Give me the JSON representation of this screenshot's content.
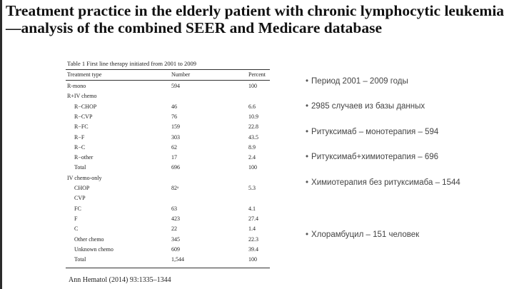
{
  "title": "Treatment practice in the elderly patient with chronic lymphocytic leukemia—analysis of the combined SEER and Medicare database",
  "table": {
    "caption": "Table 1  First line therapy initiated from 2001 to 2009",
    "headers": [
      "Treatment type",
      "Number",
      "Percent"
    ],
    "rows": [
      {
        "type": "R-mono",
        "number": "594",
        "percent": "100",
        "indent": false
      },
      {
        "type": "R+IV chemo",
        "number": "",
        "percent": "",
        "indent": false
      },
      {
        "type": "R−CHOP",
        "number": "46",
        "percent": "6.6",
        "indent": true
      },
      {
        "type": "R−CVP",
        "number": "76",
        "percent": "10.9",
        "indent": true
      },
      {
        "type": "R−FC",
        "number": "159",
        "percent": "22.8",
        "indent": true
      },
      {
        "type": "R−F",
        "number": "303",
        "percent": "43.5",
        "indent": true
      },
      {
        "type": "R−C",
        "number": "62",
        "percent": "8.9",
        "indent": true
      },
      {
        "type": "R−other",
        "number": "17",
        "percent": "2.4",
        "indent": true
      },
      {
        "type": "Total",
        "number": "696",
        "percent": "100",
        "indent": true
      },
      {
        "type": "IV chemo-only",
        "number": "",
        "percent": "",
        "indent": false
      },
      {
        "type": "CHOP",
        "number": "82ᵃ",
        "percent": "5.3",
        "indent": true
      },
      {
        "type": "CVP",
        "number": "",
        "percent": "",
        "indent": true
      },
      {
        "type": "FC",
        "number": "63",
        "percent": "4.1",
        "indent": true
      },
      {
        "type": "F",
        "number": "423",
        "percent": "27.4",
        "indent": true
      },
      {
        "type": "C",
        "number": "22",
        "percent": "1.4",
        "indent": true
      },
      {
        "type": "Other chemo",
        "number": "345",
        "percent": "22.3",
        "indent": true
      },
      {
        "type": "Unknown chemo",
        "number": "609",
        "percent": "39.4",
        "indent": true
      },
      {
        "type": "Total",
        "number": "1,544",
        "percent": "100",
        "indent": true
      }
    ]
  },
  "citation": "Ann Hematol (2014) 93:1335–1344",
  "bullets": [
    "Период 2001 – 2009 годы",
    "2985 случаев из базы данных",
    "Ритуксимаб – монотерапия – 594",
    "Ритуксимаб+химиотерапия – 696",
    "Химиотерапия без ритуксимаба – 1544",
    "Хлорамбуцил – 151 человек"
  ]
}
